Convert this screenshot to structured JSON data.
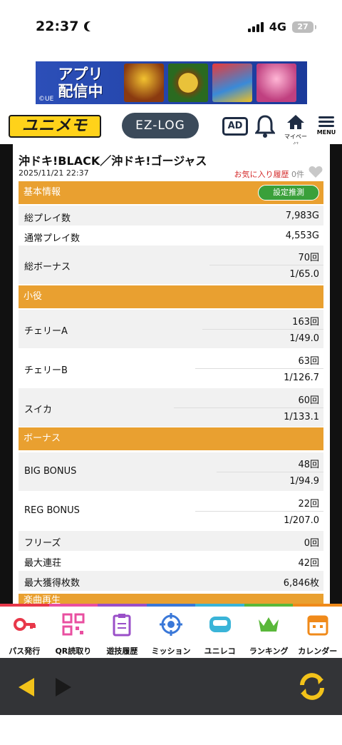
{
  "status_bar": {
    "time": "22:37",
    "network": "4G",
    "battery": "27"
  },
  "banner": {
    "text_line1": "アプリ",
    "text_line2": "配信中",
    "copyright": "©UE"
  },
  "header": {
    "logo": "ユニメモ",
    "ezlog": "EZ-LOG",
    "ad": "AD",
    "mypage_label": "マイページ",
    "menu_label": "MENU"
  },
  "record": {
    "title": "沖ドキ!BLACK／沖ドキ!ゴージャス",
    "date": "2025/11/21 22:37",
    "favorite_label": "お気に入り履歴",
    "favorite_count": "0件"
  },
  "basic": {
    "header": "基本情報",
    "estimate_button": "設定推測",
    "rows": [
      {
        "label": "総プレイ数",
        "value": "7,983G"
      },
      {
        "label": "通常プレイ数",
        "value": "4,553G"
      },
      {
        "label": "総ボーナス",
        "value": "70回",
        "rate": "1/65.0"
      }
    ]
  },
  "koyaku": {
    "header": "小役",
    "rows": [
      {
        "label": "チェリーA",
        "value": "163回",
        "rate": "1/49.0"
      },
      {
        "label": "チェリーB",
        "value": "63回",
        "rate": "1/126.7"
      },
      {
        "label": "スイカ",
        "value": "60回",
        "rate": "1/133.1"
      }
    ]
  },
  "bonus": {
    "header": "ボーナス",
    "rows": [
      {
        "label": "BIG BONUS",
        "value": "48回",
        "rate": "1/94.9"
      },
      {
        "label": "REG BONUS",
        "value": "22回",
        "rate": "1/207.0"
      },
      {
        "label": "フリーズ",
        "value": "0回"
      },
      {
        "label": "最大連荘",
        "value": "42回"
      },
      {
        "label": "最大獲得枚数",
        "value": "6,846枚"
      }
    ]
  },
  "next_section": {
    "header": "楽曲再生"
  },
  "bottom_nav": [
    {
      "label": "パス発行",
      "icon": "key-icon"
    },
    {
      "label": "QR読取り",
      "icon": "qr-icon"
    },
    {
      "label": "遊技履歴",
      "icon": "clipboard-icon"
    },
    {
      "label": "ミッション",
      "icon": "target-icon"
    },
    {
      "label": "ユニレコ",
      "icon": "unireco-icon"
    },
    {
      "label": "ランキング",
      "icon": "crown-icon"
    },
    {
      "label": "カレンダー",
      "icon": "calendar-icon"
    }
  ],
  "colors": {
    "section": "#e9a030",
    "estimate": "#3aa03a",
    "favorite": "#d42a2a",
    "arrow": "#f2c21a"
  }
}
